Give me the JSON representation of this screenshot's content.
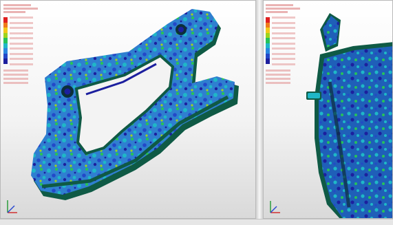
{
  "colors": {
    "contour_bands": [
      "#e01f1f",
      "#ef7a1b",
      "#f2c81a",
      "#9ed41e",
      "#26c25a",
      "#1fb7c7",
      "#2a86e0",
      "#2348c8",
      "#1c1f9e"
    ],
    "background_top": "#ffffff",
    "background_bottom": "#d9d9d9"
  },
  "icons": {
    "axis_triad": "xyz-axis-triad-icon"
  },
  "panels": [
    {
      "name": "caliper-bracket-view",
      "legend": {
        "header": [
          "",
          "",
          ""
        ],
        "values": [
          "",
          "",
          "",
          "",
          "",
          "",
          "",
          "",
          "",
          ""
        ],
        "footer": [
          "",
          "",
          "",
          ""
        ]
      }
    },
    {
      "name": "caliper-housing-view",
      "legend": {
        "header": [
          "",
          "",
          ""
        ],
        "values": [
          "",
          "",
          "",
          "",
          "",
          "",
          "",
          "",
          "",
          ""
        ],
        "footer": [
          "",
          "",
          "",
          ""
        ]
      }
    }
  ]
}
